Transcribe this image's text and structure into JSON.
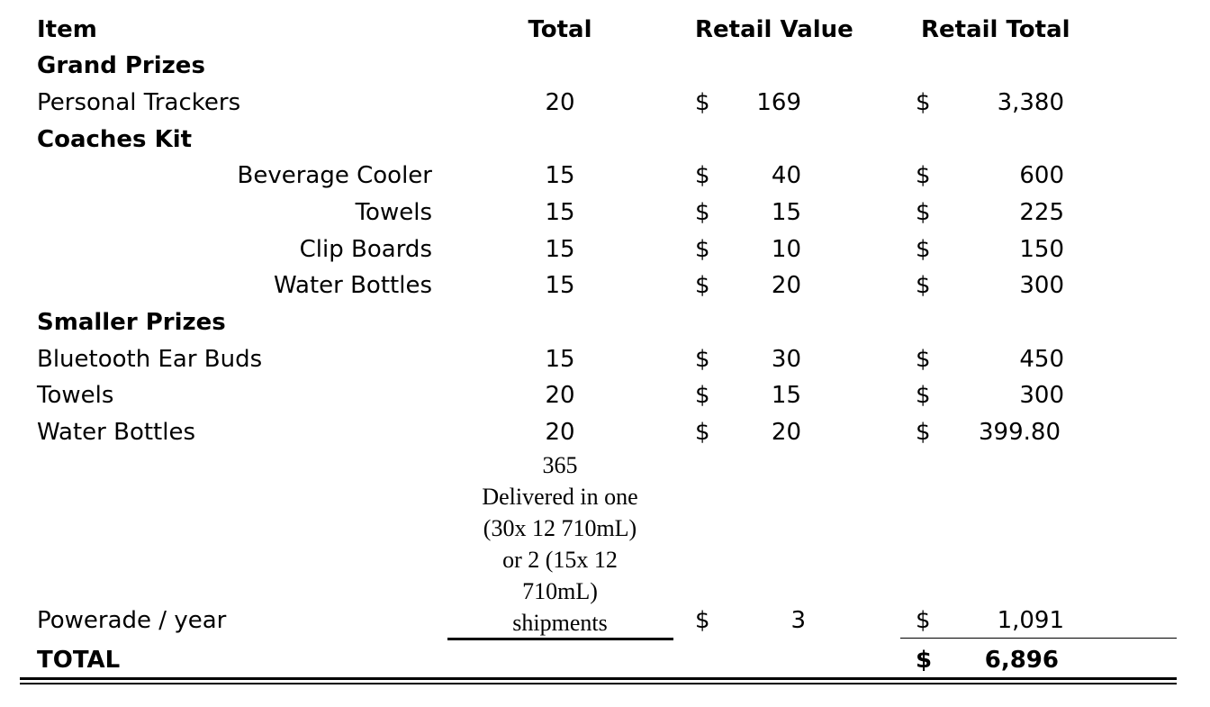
{
  "headers": {
    "item": "Item",
    "total": "Total",
    "retail_value": "Retail Value",
    "retail_total": "Retail Total"
  },
  "sections": [
    {
      "title": "Grand Prizes",
      "rows": [
        {
          "item": "Personal Trackers",
          "total": "20",
          "currency": "$",
          "value": "169",
          "total_currency": "$",
          "retail_total": "3,380"
        }
      ]
    },
    {
      "title": "Coaches Kit",
      "rows": [
        {
          "item": "Beverage Cooler",
          "total": "15",
          "currency": "$",
          "value": "40",
          "total_currency": "$",
          "retail_total": "600"
        },
        {
          "item": "Towels",
          "total": "15",
          "currency": "$",
          "value": "15",
          "total_currency": "$",
          "retail_total": "225"
        },
        {
          "item": "Clip Boards",
          "total": "15",
          "currency": "$",
          "value": "10",
          "total_currency": "$",
          "retail_total": "150"
        },
        {
          "item": "Water Bottles",
          "total": "15",
          "currency": "$",
          "value": "20",
          "total_currency": "$",
          "retail_total": "300"
        }
      ]
    },
    {
      "title": "Smaller Prizes",
      "rows": [
        {
          "item": "Bluetooth Ear Buds",
          "total": "15",
          "currency": "$",
          "value": "30",
          "total_currency": "$",
          "retail_total": "450"
        },
        {
          "item": "Towels",
          "total": "20",
          "currency": "$",
          "value": "15",
          "total_currency": "$",
          "retail_total": "300"
        },
        {
          "item": "Water Bottles",
          "total": "20",
          "currency": "$",
          "value": "20",
          "total_currency": "$",
          "retail_total": "399.80"
        }
      ]
    }
  ],
  "powerade": {
    "item": "Powerade / year",
    "total_note": "365\nDelivered in one\n(30x 12 710mL)\nor 2 (15x 12\n710mL)\nshipments",
    "currency": "$",
    "value": "3",
    "total_currency": "$",
    "retail_total": "1,091"
  },
  "grand_total": {
    "label": "TOTAL",
    "currency": "$",
    "value": "6,896"
  }
}
